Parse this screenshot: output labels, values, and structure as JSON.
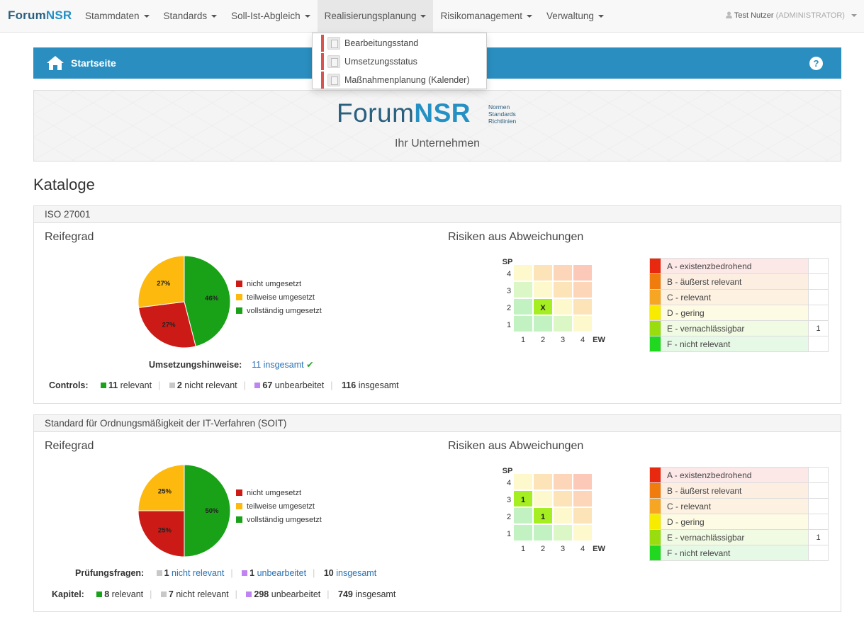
{
  "brand": {
    "part1": "Forum",
    "part2": "NSR"
  },
  "nav": {
    "items": [
      {
        "label": "Stammdaten"
      },
      {
        "label": "Standards"
      },
      {
        "label": "Soll-Ist-Abgleich"
      },
      {
        "label": "Realisierungsplanung"
      },
      {
        "label": "Risikomanagement"
      },
      {
        "label": "Verwaltung"
      }
    ],
    "user_name": "Test Nutzer",
    "user_role": "(ADMINISTRATOR)"
  },
  "dropdown": {
    "items": [
      {
        "label": "Bearbeitungsstand"
      },
      {
        "label": "Umsetzungsstatus"
      },
      {
        "label": "Maßnahmenplanung (Kalender)"
      }
    ]
  },
  "banner": {
    "title": "Startseite",
    "help": "?"
  },
  "hero": {
    "logo1": "Forum",
    "logo2": "NSR",
    "tag1": "Normen",
    "tag2": "Standards",
    "tag3": "Richtlinien",
    "company": "Ihr Unternehmen"
  },
  "kataloge": "Kataloge",
  "legend_labels": {
    "nicht": "nicht umgesetzt",
    "teilweise": "teilweise umgesetzt",
    "voll": "vollständig umgesetzt"
  },
  "colors": {
    "red": "#cc1b16",
    "yellow": "#fdb90d",
    "green": "#19a218",
    "relevant": "#1aa21a",
    "nicht_relevant": "#c8c8c8",
    "unbearbeitet": "#c084f0"
  },
  "matrix_axis": {
    "sp": "SP",
    "ew": "EW",
    "rows": [
      "4",
      "3",
      "2",
      "1"
    ],
    "cols": [
      "1",
      "2",
      "3",
      "4"
    ]
  },
  "risk_classes": [
    {
      "label": "A - existenzbedrohend",
      "color": "#e8280f",
      "bg": "#fde8e8"
    },
    {
      "label": "B - äußerst relevant",
      "color": "#f07c0e",
      "bg": "#fdeee2"
    },
    {
      "label": "C - relevant",
      "color": "#f6a623",
      "bg": "#fdf1e2"
    },
    {
      "label": "D - gering",
      "color": "#f7ec00",
      "bg": "#fdfbe3"
    },
    {
      "label": "E - vernachlässigbar",
      "color": "#99dd0e",
      "bg": "#f1fae2"
    },
    {
      "label": "F - nicht relevant",
      "color": "#20d820",
      "bg": "#e6f9e6"
    }
  ],
  "catalogs": [
    {
      "name": "ISO 27001",
      "reifegrad": "Reifegrad",
      "risiken": "Risiken aus Abweichungen",
      "pie": {
        "green": 46,
        "red": 27,
        "yellow": 27,
        "labels": [
          "46%",
          "27%",
          "27%"
        ]
      },
      "hints": {
        "label": "Umsetzungshinweise:",
        "value": "11 insgesamt"
      },
      "controls": {
        "label": "Controls:",
        "rel_n": "11",
        "rel_t": "relevant",
        "nrel_n": "2",
        "nrel_t": "nicht relevant",
        "unb_n": "67",
        "unb_t": "unbearbeitet",
        "tot_n": "116",
        "tot_t": "insgesamt"
      },
      "matrix_marks": [
        {
          "sp": 2,
          "ew": 2,
          "text": "X"
        }
      ],
      "risk_counts": [
        "",
        "",
        "",
        "",
        "1",
        ""
      ]
    },
    {
      "name": "Standard für Ordnungsmäßigkeit der IT-Verfahren (SOIT)",
      "reifegrad": "Reifegrad",
      "risiken": "Risiken aus Abweichungen",
      "pie": {
        "green": 50,
        "red": 25,
        "yellow": 25,
        "labels": [
          "50%",
          "25%",
          "25%"
        ]
      },
      "pruef": {
        "label": "Prüfungsfragen:",
        "nrel_n": "1",
        "nrel_t": "nicht relevant",
        "unb_n": "1",
        "unb_t": "unbearbeitet",
        "tot_n": "10",
        "tot_t": "insgesamt"
      },
      "kapitel": {
        "label": "Kapitel:",
        "rel_n": "8",
        "rel_t": "relevant",
        "nrel_n": "7",
        "nrel_t": "nicht relevant",
        "unb_n": "298",
        "unb_t": "unbearbeitet",
        "tot_n": "749",
        "tot_t": "insgesamt"
      },
      "matrix_marks": [
        {
          "sp": 3,
          "ew": 1,
          "text": "1"
        },
        {
          "sp": 2,
          "ew": 2,
          "text": "1"
        }
      ],
      "risk_counts": [
        "",
        "",
        "",
        "",
        "1",
        ""
      ]
    }
  ]
}
